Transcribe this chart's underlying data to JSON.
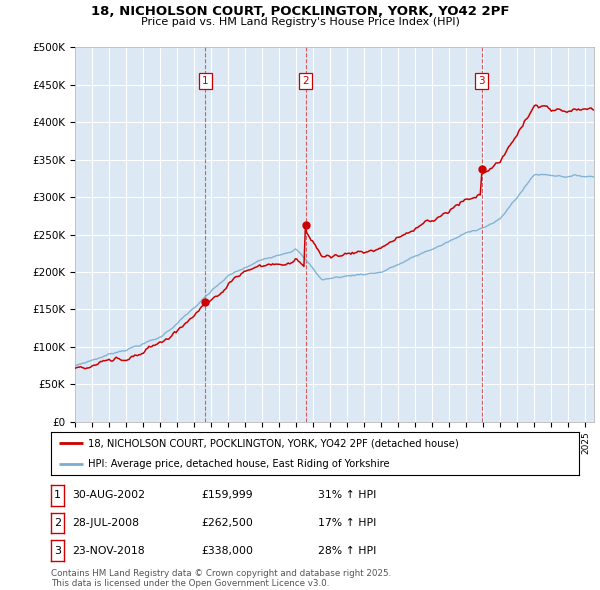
{
  "title1": "18, NICHOLSON COURT, POCKLINGTON, YORK, YO42 2PF",
  "title2": "Price paid vs. HM Land Registry's House Price Index (HPI)",
  "ylabel_values": [
    "£0",
    "£50K",
    "£100K",
    "£150K",
    "£200K",
    "£250K",
    "£300K",
    "£350K",
    "£400K",
    "£450K",
    "£500K"
  ],
  "ylim": [
    0,
    500000
  ],
  "xlim_start": 1995.0,
  "xlim_end": 2025.5,
  "sale_dates": [
    2002.664,
    2008.569,
    2018.898
  ],
  "sale_prices": [
    159999,
    262500,
    338000
  ],
  "sale_labels": [
    "1",
    "2",
    "3"
  ],
  "legend_line1": "18, NICHOLSON COURT, POCKLINGTON, YORK, YO42 2PF (detached house)",
  "legend_line2": "HPI: Average price, detached house, East Riding of Yorkshire",
  "table_rows": [
    {
      "label": "1",
      "date": "30-AUG-2002",
      "price": "£159,999",
      "change": "31% ↑ HPI"
    },
    {
      "label": "2",
      "date": "28-JUL-2008",
      "price": "£262,500",
      "change": "17% ↑ HPI"
    },
    {
      "label": "3",
      "date": "23-NOV-2018",
      "price": "£338,000",
      "change": "28% ↑ HPI"
    }
  ],
  "footer": "Contains HM Land Registry data © Crown copyright and database right 2025.\nThis data is licensed under the Open Government Licence v3.0.",
  "bg_color": "#dce9f5",
  "red_color": "#cc0000",
  "blue_color": "#7aadcf",
  "grid_color": "#ffffff"
}
